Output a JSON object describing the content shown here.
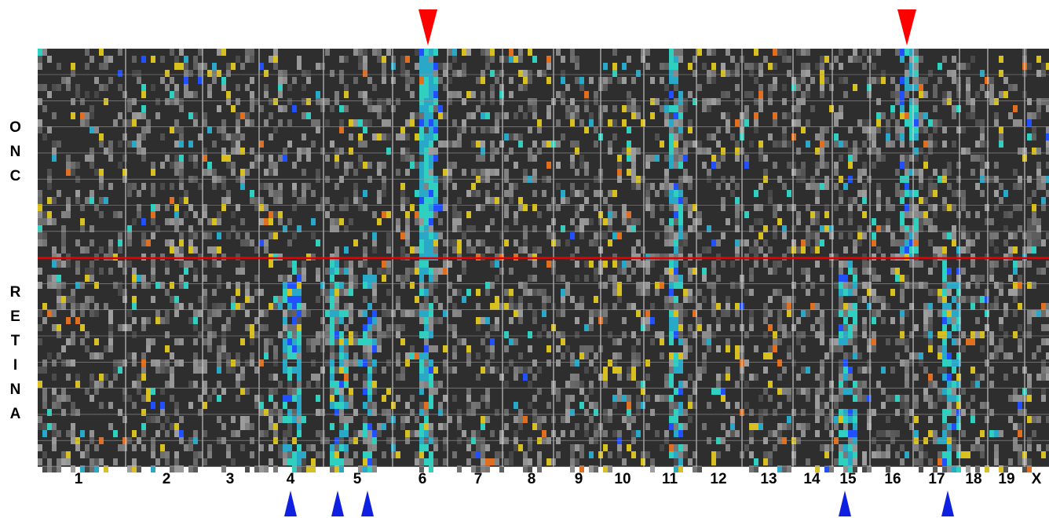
{
  "row_groups": [
    "ONC",
    "RETINA"
  ],
  "chromosomes": [
    "1",
    "2",
    "3",
    "4",
    "5",
    "6",
    "7",
    "8",
    "9",
    "10",
    "11",
    "12",
    "13",
    "14",
    "15",
    "16",
    "17",
    "18",
    "19",
    "X"
  ]
}
